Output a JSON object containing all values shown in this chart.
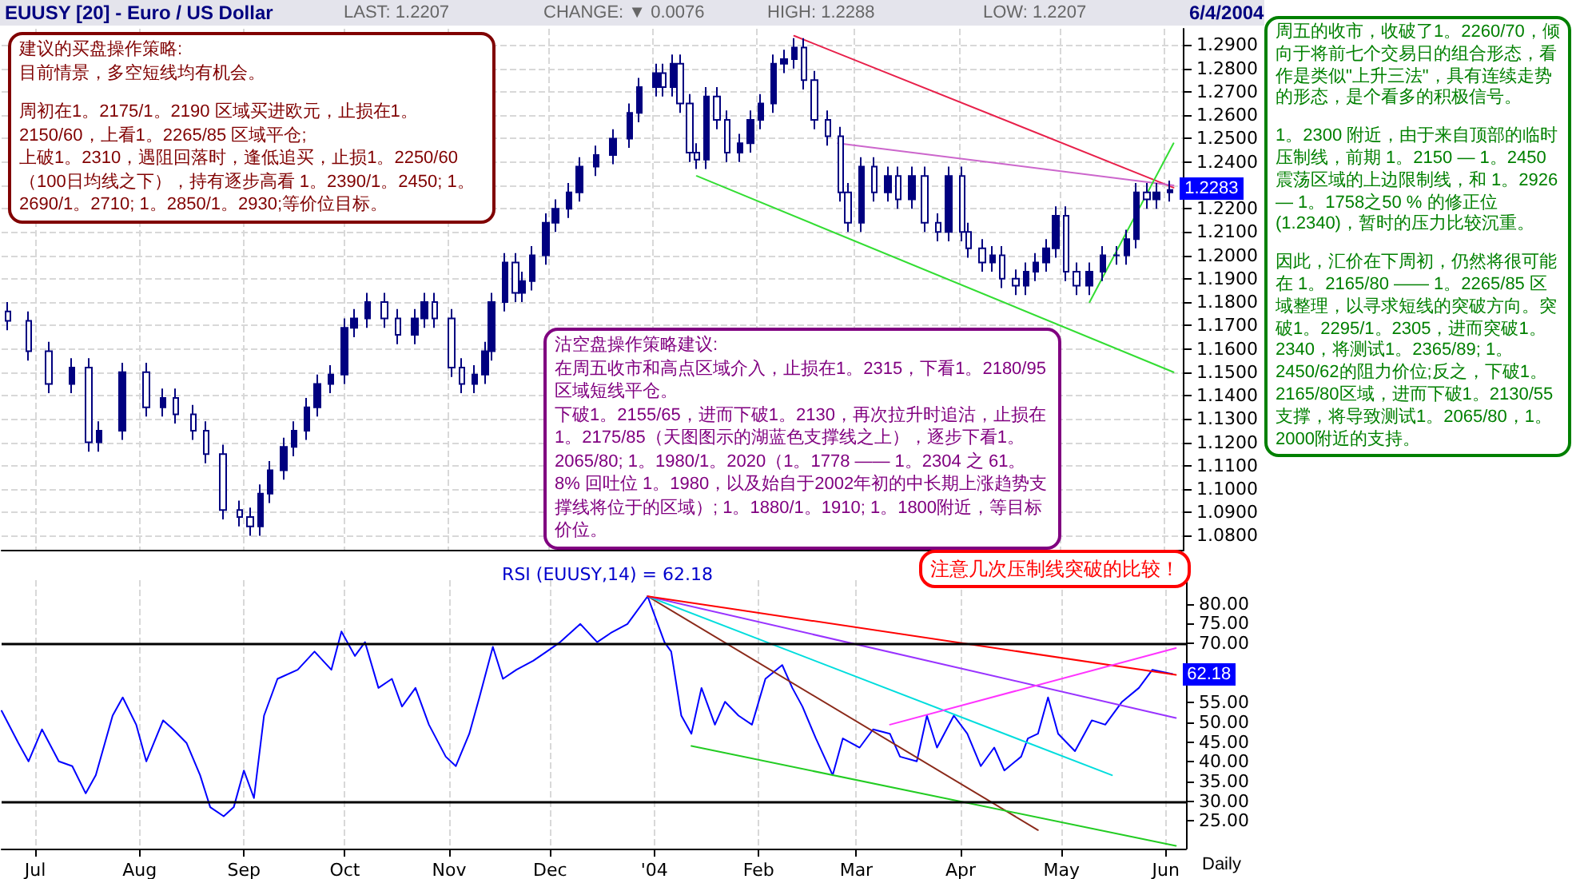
{
  "chart_data": [
    {
      "type": "candlestick",
      "title": "EUUSY [20] - Euro / US Dollar",
      "color": "#000080",
      "annotations": [
        "LAST: 1.2207",
        "CHANGE: ▼ 0.0076",
        "HIGH: 1.2288",
        "LOW: 1.2207",
        "6/4/2004",
        "建议的买盘操作策略:",
        "目前情景，多空短线均有机会。",
        "周初在1。2175/1。2190 区域买进欧元，止损在1。2150/60，上看1。2265/85 区域平仓;",
        "上破1。2310，遇阻回落时，逢低追买，止损1。2250/60（100日均线之下），持有逐步高看 1。2390/1。2450; 1。2690/1。2710; 1。2850/1。2930;等价位目标。",
        "沽空盘操作策略建议:",
        "在周五收市和高点区域介入，止损在1。2315，下看1。2180/95 区域短线平仓。",
        "下破1。2155/65，进而下破1。2130，再次拉升时追沽，止损在1。2175/85（天图图示的湖蓝色支撑线之上），逐步下看1。2065/80; 1。1980/1。2020（1。1778 —— 1。2304 之 61。8% 回吐位 1。1980，以及始自于2002年初的中长期上涨趋势支撑线将位于的区域）; 1。1880/1。1910; 1。1800附近，等目标价位。",
        "周五的收市，收破了1。2260/70，倾向于将前七个交易日的组合形态，看作是类似\"上升三法\"，具有连续走势的形态，是个看多的积极信号。",
        "1。2300 附近，由于来自顶部的临时压制线，前期 1。2150 — 1。2450 震荡区域的上边限制线，和 1。2926 — 1。1758之50 % 的修正位(1.2340)，暂时的压力比较沉重。",
        "因此，汇价在下周初，仍然将很可能在 1。2165/80 —— 1。2265/85 区域整理，以寻求短线的突破方向。突破1。2295/1。2305，进而突破1。2340，将测试1。2365/89; 1。2450/62的阻力价位;反之，下破1。2165/80区域，进而下破1。2130/55支撑，将导致测试1。2065/80，1。2000附近的支持。",
        {
          "text": "1.2283",
          "x": "2004-06-03",
          "y": 1.2283
        }
      ],
      "x": [
        "2003-06-23",
        "2003-06-29",
        "2003-07-05",
        "2003-07-12",
        "2003-07-17",
        "2003-07-20",
        "2003-07-27",
        "2003-08-03",
        "2003-08-08",
        "2003-08-12",
        "2003-08-17",
        "2003-08-21",
        "2003-08-26",
        "2003-08-31",
        "2003-09-03",
        "2003-09-06",
        "2003-09-09",
        "2003-09-13",
        "2003-09-16",
        "2003-09-20",
        "2003-09-23",
        "2003-09-27",
        "2003-10-01",
        "2003-10-04",
        "2003-10-08",
        "2003-10-13",
        "2003-10-17",
        "2003-10-22",
        "2003-10-25",
        "2003-10-28",
        "2003-11-02",
        "2003-11-05",
        "2003-11-09",
        "2003-11-12",
        "2003-11-14",
        "2003-11-18",
        "2003-11-21",
        "2003-11-23",
        "2003-11-26",
        "2003-11-30",
        "2003-12-03",
        "2003-12-07",
        "2003-12-10",
        "2003-12-15",
        "2003-12-20",
        "2003-12-25",
        "2003-12-28",
        "2004-01-02",
        "2004-01-04",
        "2004-01-07",
        "2004-01-09",
        "2004-01-12",
        "2004-01-14",
        "2004-01-17",
        "2004-01-20",
        "2004-01-23",
        "2004-01-27",
        "2004-01-30",
        "2004-02-02",
        "2004-02-06",
        "2004-02-09",
        "2004-02-12",
        "2004-02-15",
        "2004-02-18",
        "2004-02-22",
        "2004-02-26",
        "2004-02-28",
        "2004-03-03",
        "2004-03-07",
        "2004-03-11",
        "2004-03-14",
        "2004-03-18",
        "2004-03-22",
        "2004-03-26",
        "2004-03-29",
        "2004-04-02",
        "2004-04-04",
        "2004-04-08",
        "2004-04-11",
        "2004-04-14",
        "2004-04-18",
        "2004-04-21",
        "2004-04-24",
        "2004-04-27",
        "2004-04-30",
        "2004-05-03",
        "2004-05-06",
        "2004-05-10",
        "2004-05-14",
        "2004-05-18",
        "2004-05-21",
        "2004-05-24",
        "2004-05-27",
        "2004-05-30",
        "2004-06-03"
      ],
      "ohlc": [
        [
          1.176,
          1.18,
          1.168,
          1.172
        ],
        [
          1.172,
          1.176,
          1.155,
          1.159
        ],
        [
          1.159,
          1.163,
          1.141,
          1.145
        ],
        [
          1.145,
          1.156,
          1.141,
          1.152
        ],
        [
          1.152,
          1.156,
          1.116,
          1.12
        ],
        [
          1.12,
          1.129,
          1.116,
          1.125
        ],
        [
          1.125,
          1.154,
          1.121,
          1.15
        ],
        [
          1.15,
          1.154,
          1.131,
          1.135
        ],
        [
          1.135,
          1.143,
          1.131,
          1.139
        ],
        [
          1.139,
          1.143,
          1.128,
          1.132
        ],
        [
          1.132,
          1.136,
          1.121,
          1.125
        ],
        [
          1.125,
          1.129,
          1.111,
          1.115
        ],
        [
          1.115,
          1.119,
          1.087,
          1.091
        ],
        [
          1.091,
          1.095,
          1.084,
          1.088
        ],
        [
          1.088,
          1.092,
          1.08,
          1.084
        ],
        [
          1.084,
          1.102,
          1.08,
          1.098
        ],
        [
          1.098,
          1.112,
          1.094,
          1.108
        ],
        [
          1.108,
          1.122,
          1.104,
          1.118
        ],
        [
          1.118,
          1.129,
          1.114,
          1.125
        ],
        [
          1.125,
          1.139,
          1.121,
          1.135
        ],
        [
          1.135,
          1.149,
          1.131,
          1.145
        ],
        [
          1.145,
          1.153,
          1.141,
          1.149
        ],
        [
          1.149,
          1.173,
          1.145,
          1.169
        ],
        [
          1.169,
          1.177,
          1.165,
          1.173
        ],
        [
          1.173,
          1.184,
          1.169,
          1.18
        ],
        [
          1.18,
          1.184,
          1.169,
          1.173
        ],
        [
          1.173,
          1.177,
          1.162,
          1.166
        ],
        [
          1.166,
          1.177,
          1.162,
          1.173
        ],
        [
          1.173,
          1.184,
          1.169,
          1.18
        ],
        [
          1.18,
          1.184,
          1.169,
          1.173
        ],
        [
          1.173,
          1.177,
          1.148,
          1.152
        ],
        [
          1.152,
          1.156,
          1.141,
          1.145
        ],
        [
          1.145,
          1.153,
          1.141,
          1.149
        ],
        [
          1.149,
          1.163,
          1.145,
          1.159
        ],
        [
          1.159,
          1.184,
          1.155,
          1.18
        ],
        [
          1.18,
          1.201,
          1.176,
          1.197
        ],
        [
          1.197,
          1.201,
          1.18,
          1.184
        ],
        [
          1.184,
          1.193,
          1.18,
          1.189
        ],
        [
          1.189,
          1.204,
          1.185,
          1.2
        ],
        [
          1.2,
          1.218,
          1.196,
          1.214
        ],
        [
          1.214,
          1.224,
          1.21,
          1.22
        ],
        [
          1.22,
          1.231,
          1.216,
          1.227
        ],
        [
          1.227,
          1.242,
          1.223,
          1.238
        ],
        [
          1.238,
          1.247,
          1.234,
          1.243
        ],
        [
          1.243,
          1.254,
          1.239,
          1.25
        ],
        [
          1.25,
          1.265,
          1.246,
          1.261
        ],
        [
          1.261,
          1.276,
          1.257,
          1.272
        ],
        [
          1.272,
          1.282,
          1.268,
          1.278
        ],
        [
          1.278,
          1.282,
          1.268,
          1.272
        ],
        [
          1.272,
          1.286,
          1.268,
          1.282
        ],
        [
          1.282,
          1.286,
          1.261,
          1.265
        ],
        [
          1.265,
          1.269,
          1.24,
          1.244
        ],
        [
          1.244,
          1.248,
          1.237,
          1.241
        ],
        [
          1.241,
          1.272,
          1.237,
          1.268
        ],
        [
          1.268,
          1.272,
          1.254,
          1.258
        ],
        [
          1.258,
          1.262,
          1.24,
          1.244
        ],
        [
          1.244,
          1.252,
          1.24,
          1.248
        ],
        [
          1.248,
          1.262,
          1.244,
          1.258
        ],
        [
          1.258,
          1.269,
          1.254,
          1.265
        ],
        [
          1.265,
          1.286,
          1.261,
          1.282
        ],
        [
          1.282,
          1.288,
          1.278,
          1.284
        ],
        [
          1.284,
          1.293,
          1.28,
          1.289
        ],
        [
          1.289,
          1.293,
          1.271,
          1.275
        ],
        [
          1.275,
          1.279,
          1.254,
          1.258
        ],
        [
          1.258,
          1.262,
          1.247,
          1.251
        ],
        [
          1.251,
          1.255,
          1.223,
          1.227
        ],
        [
          1.227,
          1.231,
          1.21,
          1.214
        ],
        [
          1.214,
          1.242,
          1.21,
          1.238
        ],
        [
          1.238,
          1.242,
          1.223,
          1.227
        ],
        [
          1.227,
          1.238,
          1.223,
          1.234
        ],
        [
          1.234,
          1.238,
          1.22,
          1.224
        ],
        [
          1.224,
          1.238,
          1.22,
          1.234
        ],
        [
          1.234,
          1.238,
          1.21,
          1.214
        ],
        [
          1.214,
          1.218,
          1.206,
          1.21
        ],
        [
          1.21,
          1.238,
          1.206,
          1.234
        ],
        [
          1.234,
          1.238,
          1.206,
          1.21
        ],
        [
          1.21,
          1.214,
          1.199,
          1.203
        ],
        [
          1.203,
          1.207,
          1.193,
          1.197
        ],
        [
          1.197,
          1.204,
          1.193,
          1.2
        ],
        [
          1.2,
          1.204,
          1.186,
          1.19
        ],
        [
          1.19,
          1.194,
          1.183,
          1.187
        ],
        [
          1.187,
          1.197,
          1.183,
          1.193
        ],
        [
          1.193,
          1.201,
          1.189,
          1.197
        ],
        [
          1.197,
          1.207,
          1.193,
          1.203
        ],
        [
          1.203,
          1.221,
          1.199,
          1.217
        ],
        [
          1.217,
          1.221,
          1.189,
          1.193
        ],
        [
          1.193,
          1.197,
          1.183,
          1.187
        ],
        [
          1.187,
          1.197,
          1.183,
          1.193
        ],
        [
          1.193,
          1.204,
          1.189,
          1.2
        ],
        [
          1.2,
          1.204,
          1.196,
          1.2
        ],
        [
          1.2,
          1.211,
          1.196,
          1.207
        ],
        [
          1.207,
          1.231,
          1.203,
          1.227
        ],
        [
          1.227,
          1.231,
          1.22,
          1.224
        ],
        [
          1.224,
          1.231,
          1.22,
          1.227
        ],
        [
          1.227,
          1.232,
          1.223,
          1.228
        ]
      ],
      "series": [
        {
          "type": "line",
          "color": "#e8204a",
          "x": [
            "2004-02-12",
            "2004-06-04"
          ],
          "values": [
            1.294,
            1.229
          ]
        },
        {
          "type": "line",
          "color": "#cc66cc",
          "x": [
            "2004-02-25",
            "2004-06-04"
          ],
          "values": [
            1.248,
            1.23
          ]
        },
        {
          "type": "line",
          "color": "#33dd33",
          "x": [
            "2004-01-14",
            "2004-06-04"
          ],
          "values": [
            1.234,
            1.15
          ]
        },
        {
          "type": "line",
          "color": "#33dd33",
          "x": [
            "2004-05-10",
            "2004-06-04"
          ],
          "values": [
            1.18,
            1.248
          ]
        }
      ],
      "xlim": [
        "2003-06-21",
        "2004-06-07"
      ],
      "xticks": [
        {
          "value": "2003-07-01",
          "label": null
        },
        {
          "value": "2003-08-01",
          "label": null
        },
        {
          "value": "2003-09-01",
          "label": null
        },
        {
          "value": "2003-10-01",
          "label": null
        },
        {
          "value": "2003-11-01",
          "label": null
        },
        {
          "value": "2003-12-01",
          "label": null
        },
        {
          "value": "2004-01-01",
          "label": null
        },
        {
          "value": "2004-02-01",
          "label": null
        },
        {
          "value": "2004-03-01",
          "label": null
        },
        {
          "value": "2004-04-01",
          "label": null
        },
        {
          "value": "2004-05-01",
          "label": null
        },
        {
          "value": "2004-06-01",
          "label": null
        }
      ],
      "ylim": [
        1.074,
        1.297
      ],
      "yticks": [
        {
          "value": 1.08,
          "label": "1.0800"
        },
        {
          "value": 1.09,
          "label": "1.0900"
        },
        {
          "value": 1.1,
          "label": "1.1000"
        },
        {
          "value": 1.11,
          "label": "1.1100"
        },
        {
          "value": 1.12,
          "label": "1.1200"
        },
        {
          "value": 1.13,
          "label": "1.1300"
        },
        {
          "value": 1.14,
          "label": "1.1400"
        },
        {
          "value": 1.15,
          "label": "1.1500"
        },
        {
          "value": 1.16,
          "label": "1.1600"
        },
        {
          "value": 1.17,
          "label": "1.1700"
        },
        {
          "value": 1.18,
          "label": "1.1800"
        },
        {
          "value": 1.19,
          "label": "1.1900"
        },
        {
          "value": 1.2,
          "label": "1.2000"
        },
        {
          "value": 1.21,
          "label": "1.2100"
        },
        {
          "value": 1.22,
          "label": "1.2200"
        },
        {
          "value": 1.23,
          "label": null
        },
        {
          "value": 1.24,
          "label": "1.2400"
        },
        {
          "value": 1.25,
          "label": "1.2500"
        },
        {
          "value": 1.26,
          "label": "1.2600"
        },
        {
          "value": 1.27,
          "label": "1.2700"
        },
        {
          "value": 1.28,
          "label": "1.2800"
        },
        {
          "value": 1.29,
          "label": "1.2900"
        }
      ],
      "grid": true,
      "tick_labels": "y"
    },
    {
      "type": "line",
      "title": "RSI (EUUSY,14) = 62.18",
      "annotations": [
        "注意几次压制线突破的比较！",
        {
          "text": "62.18",
          "x": "2004-06-03",
          "y": 62.18
        },
        "Daily"
      ],
      "series": [
        {
          "color": "#0000ff",
          "x": [
            "2003-06-21",
            "2003-06-26",
            "2003-06-29",
            "2003-07-03",
            "2003-07-08",
            "2003-07-12",
            "2003-07-16",
            "2003-07-19",
            "2003-07-24",
            "2003-07-27",
            "2003-07-31",
            "2003-08-03",
            "2003-08-08",
            "2003-08-11",
            "2003-08-15",
            "2003-08-19",
            "2003-08-22",
            "2003-08-26",
            "2003-08-29",
            "2003-09-01",
            "2003-09-04",
            "2003-09-07",
            "2003-09-11",
            "2003-09-17",
            "2003-09-22",
            "2003-09-27",
            "2003-09-30",
            "2003-10-04",
            "2003-10-07",
            "2003-10-11",
            "2003-10-15",
            "2003-10-18",
            "2003-10-22",
            "2003-10-26",
            "2003-10-31",
            "2003-11-03",
            "2003-11-07",
            "2003-11-10",
            "2003-11-14",
            "2003-11-17",
            "2003-11-21",
            "2003-11-26",
            "2003-11-30",
            "2003-12-04",
            "2003-12-10",
            "2003-12-15",
            "2003-12-19",
            "2003-12-24",
            "2003-12-30",
            "2004-01-04",
            "2004-01-06",
            "2004-01-09",
            "2004-01-12",
            "2004-01-15",
            "2004-01-19",
            "2004-01-22",
            "2004-01-26",
            "2004-01-30",
            "2004-02-03",
            "2004-02-08",
            "2004-02-11",
            "2004-02-14",
            "2004-02-18",
            "2004-02-23",
            "2004-02-26",
            "2004-03-02",
            "2004-03-06",
            "2004-03-11",
            "2004-03-14",
            "2004-03-19",
            "2004-03-22",
            "2004-03-25",
            "2004-03-30",
            "2004-04-03",
            "2004-04-07",
            "2004-04-11",
            "2004-04-14",
            "2004-04-19",
            "2004-04-21",
            "2004-04-24",
            "2004-04-27",
            "2004-04-30",
            "2004-05-05",
            "2004-05-10",
            "2004-05-14",
            "2004-05-19",
            "2004-05-24",
            "2004-05-28",
            "2004-06-03"
          ],
          "values": [
            52.9,
            44.7,
            40.1,
            48.2,
            40.1,
            38.9,
            32.0,
            36.6,
            51.7,
            56.3,
            49.4,
            40.1,
            50.5,
            48.2,
            44.7,
            36.6,
            28.5,
            26.2,
            28.5,
            37.8,
            30.8,
            51.7,
            61.0,
            63.3,
            67.9,
            63.3,
            73.0,
            66.8,
            70.3,
            58.7,
            61.0,
            54.0,
            58.7,
            49.4,
            41.3,
            38.9,
            47.1,
            56.3,
            69.1,
            61.0,
            63.3,
            65.6,
            67.9,
            70.3,
            74.9,
            70.3,
            72.6,
            74.9,
            81.9,
            70.3,
            67.9,
            51.7,
            47.1,
            58.7,
            49.4,
            55.2,
            51.7,
            49.4,
            61.0,
            64.5,
            58.7,
            54.0,
            45.9,
            36.6,
            45.9,
            43.6,
            48.2,
            47.1,
            41.3,
            40.1,
            51.7,
            43.6,
            51.7,
            47.1,
            38.9,
            43.6,
            37.8,
            41.3,
            45.9,
            47.1,
            56.3,
            47.1,
            42.7,
            50.5,
            49.4,
            55.2,
            58.7,
            63.3,
            62.2
          ]
        },
        {
          "color": "#8b2a1a",
          "x": [
            "2003-12-30",
            "2004-04-24"
          ],
          "values": [
            81.9,
            22.7
          ]
        },
        {
          "color": "#00dddd",
          "x": [
            "2003-12-30",
            "2004-05-16"
          ],
          "values": [
            81.9,
            36.6
          ]
        },
        {
          "color": "#9933ff",
          "x": [
            "2003-12-30",
            "2004-06-04"
          ],
          "values": [
            81.9,
            51.1
          ]
        },
        {
          "color": "#ff0000",
          "x": [
            "2003-12-30",
            "2004-06-04"
          ],
          "values": [
            81.9,
            62.0
          ]
        },
        {
          "color": "#22cc22",
          "x": [
            "2004-01-12",
            "2004-06-04"
          ],
          "values": [
            44.0,
            18.7
          ]
        },
        {
          "color": "#ff33ff",
          "x": [
            "2004-03-11",
            "2004-06-04"
          ],
          "values": [
            49.4,
            68.8
          ]
        }
      ],
      "ref_lines": [
        {
          "axis": "y",
          "value": 70,
          "color": "#000000"
        },
        {
          "axis": "y",
          "value": 30,
          "color": "#000000"
        }
      ],
      "xlim": [
        "2003-06-21",
        "2004-06-07"
      ],
      "xticks": [
        {
          "value": "2003-07-01",
          "label": "Jul"
        },
        {
          "value": "2003-08-01",
          "label": "Aug"
        },
        {
          "value": "2003-09-01",
          "label": "Sep"
        },
        {
          "value": "2003-10-01",
          "label": "Oct"
        },
        {
          "value": "2003-11-01",
          "label": "Nov"
        },
        {
          "value": "2003-12-01",
          "label": "Dec"
        },
        {
          "value": "2004-01-01",
          "label": "'04"
        },
        {
          "value": "2004-02-01",
          "label": "Feb"
        },
        {
          "value": "2004-03-01",
          "label": "Mar"
        },
        {
          "value": "2004-04-01",
          "label": "Apr"
        },
        {
          "value": "2004-05-01",
          "label": "May"
        },
        {
          "value": "2004-06-01",
          "label": "Jun"
        }
      ],
      "ylim": [
        18,
        86
      ],
      "yticks": [
        {
          "value": 25,
          "label": "25.00"
        },
        {
          "value": 30,
          "label": "30.00"
        },
        {
          "value": 35,
          "label": "35.00"
        },
        {
          "value": 40,
          "label": "40.00"
        },
        {
          "value": 45,
          "label": "45.00"
        },
        {
          "value": 50,
          "label": "50.00"
        },
        {
          "value": 55,
          "label": "55.00"
        },
        {
          "value": 60,
          "label": null
        },
        {
          "value": 65,
          "label": null
        },
        {
          "value": 70,
          "label": "70.00"
        },
        {
          "value": 75,
          "label": "75.00"
        },
        {
          "value": 80,
          "label": "80.00"
        }
      ],
      "grid": "x"
    }
  ]
}
